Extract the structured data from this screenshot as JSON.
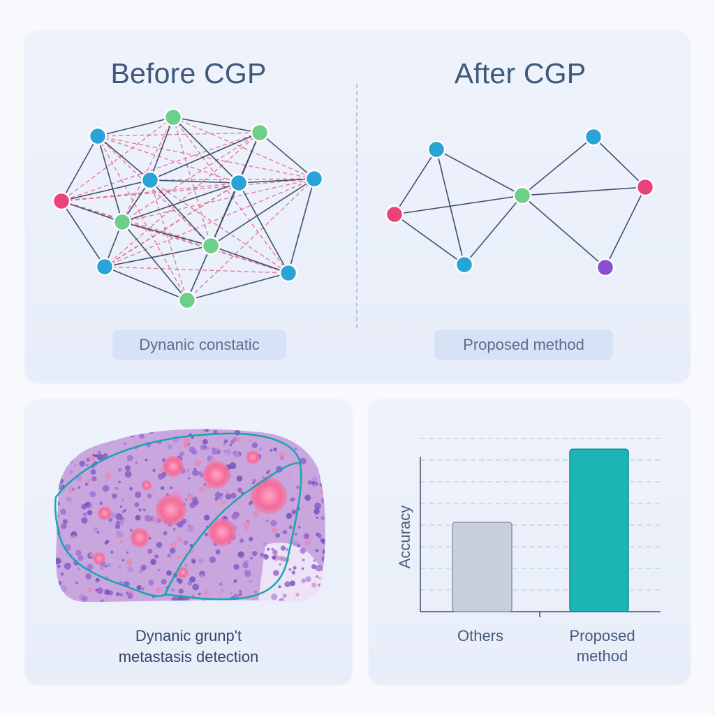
{
  "top": {
    "before_title": "Before CGP",
    "after_title": "After CGP",
    "before_caption": "Dynanic constatic",
    "after_caption": "Proposed method"
  },
  "tissue": {
    "caption_line1": "Dynanic grunp't",
    "caption_line2": "metastasis detection"
  },
  "colors": {
    "blue_node": "#2aa3d6",
    "green_node": "#6ccf8a",
    "pink_node": "#e8437a",
    "purple_node": "#8a4fd0",
    "edge": "#3f4f6b",
    "dense_edge": "#e4507a",
    "bar_others": "#c9d0dc",
    "bar_proposed": "#1bb5b5"
  },
  "chart_data": {
    "type": "bar",
    "categories": [
      "Others",
      "Proposed\nmethod"
    ],
    "category_labels": [
      "Others",
      "Proposed method"
    ],
    "values": [
      0.55,
      1.0
    ],
    "ylim": [
      0,
      1.1
    ],
    "ylabel": "Accuracy",
    "xlabel": "",
    "title": "",
    "grid": true
  }
}
